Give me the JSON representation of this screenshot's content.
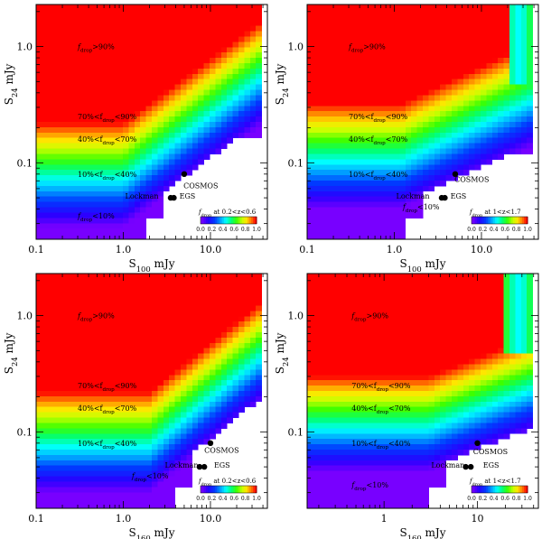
{
  "figure": {
    "description_panels": 4
  },
  "chart_data": [
    {
      "type": "heatmap",
      "xlabel": "S100 mJy",
      "xlabel_main": "S",
      "xlabel_sub": "100",
      "xlabel_unit": "mJy",
      "ylabel_main": "S",
      "ylabel_sub": "24",
      "ylabel_unit": "mJy",
      "xscale": "log",
      "yscale": "log",
      "xlim": [
        0.1,
        45
      ],
      "ylim": [
        0.022,
        2.3
      ],
      "xticks": [
        0.1,
        1.0,
        10.0
      ],
      "xtick_labels": [
        "0.1",
        "1.0",
        "10.0"
      ],
      "yticks": [
        0.1,
        1.0
      ],
      "ytick_labels": [
        "0.1",
        "1.0"
      ],
      "colorbar_title": "f_drop at 0.2<z<0.6",
      "colorbar_title_main": "f",
      "colorbar_title_sub": "drop",
      "colorbar_title_rest": " at 0.2<z<0.6",
      "colorbar_ticks": [
        "0.0",
        "0.2",
        "0.4",
        "0.6",
        "0.8",
        "1.0"
      ],
      "levels": [
        {
          "label_pre": "f",
          "label_sub": "drop",
          "label_post": ">90%",
          "x": 0.3,
          "y": 1.0
        },
        {
          "label_pre": "70%<f",
          "label_sub": "drop",
          "label_post": "<90%",
          "x": 0.3,
          "y": 0.25
        },
        {
          "label_pre": "40%<f",
          "label_sub": "drop",
          "label_post": "<70%",
          "x": 0.3,
          "y": 0.16
        },
        {
          "label_pre": "10%<f",
          "label_sub": "drop",
          "label_post": "<40%",
          "x": 0.3,
          "y": 0.08
        },
        {
          "label_pre": "f",
          "label_sub": "drop",
          "label_post": "<10%",
          "x": 0.3,
          "y": 0.035
        }
      ],
      "fields": [
        {
          "name": "COSMOS",
          "x": 5.0,
          "y": 0.08,
          "label_x": 4.9,
          "label_y": 0.064
        },
        {
          "name": "Lockman",
          "x": 3.5,
          "y": 0.05,
          "label_x": 1.05,
          "label_y": 0.052
        },
        {
          "name": "EGS",
          "x": 3.8,
          "y": 0.05,
          "label_x": 4.4,
          "label_y": 0.052
        }
      ],
      "fdrop_model": {
        "s_full": 0.22,
        "s_none": 0.028,
        "break_x": 1.0,
        "slope": 0.55,
        "hi_noise": 0.0,
        "cutoff_x": 40,
        "cliff_x": 1.8,
        "cliff_top": 0.17
      }
    },
    {
      "type": "heatmap",
      "xlabel": "S100 mJy",
      "xlabel_main": "S",
      "xlabel_sub": "100",
      "xlabel_unit": "mJy",
      "ylabel_main": "S",
      "ylabel_sub": "24",
      "ylabel_unit": "mJy",
      "xscale": "log",
      "yscale": "log",
      "xlim": [
        0.1,
        45
      ],
      "ylim": [
        0.022,
        2.3
      ],
      "xticks": [
        0.1,
        1.0,
        10.0
      ],
      "xtick_labels": [
        "0.1",
        "1.0",
        "10.0"
      ],
      "yticks": [
        0.1,
        1.0
      ],
      "ytick_labels": [
        "0.1",
        "1.0"
      ],
      "colorbar_title": "f_drop at 1<z<1.7",
      "colorbar_title_main": "f",
      "colorbar_title_sub": "drop",
      "colorbar_title_rest": " at 1<z<1.7",
      "colorbar_ticks": [
        "0.0",
        "0.2",
        "0.4",
        "0.6",
        "0.8",
        "1.0"
      ],
      "levels": [
        {
          "label_pre": "f",
          "label_sub": "drop",
          "label_post": ">90%",
          "x": 0.3,
          "y": 1.0
        },
        {
          "label_pre": "70%<f",
          "label_sub": "drop",
          "label_post": "<90%",
          "x": 0.3,
          "y": 0.25
        },
        {
          "label_pre": "40%<f",
          "label_sub": "drop",
          "label_post": "<70%",
          "x": 0.3,
          "y": 0.16
        },
        {
          "label_pre": "10%<f",
          "label_sub": "drop",
          "label_post": "<40%",
          "x": 0.3,
          "y": 0.08
        },
        {
          "label_pre": "f",
          "label_sub": "drop",
          "label_post": "<10%",
          "x": 1.25,
          "y": 0.042
        }
      ],
      "fields": [
        {
          "name": "COSMOS",
          "x": 5.0,
          "y": 0.08,
          "label_x": 4.9,
          "label_y": 0.072
        },
        {
          "name": "Lockman",
          "x": 3.5,
          "y": 0.05,
          "label_x": 1.05,
          "label_y": 0.052
        },
        {
          "name": "EGS",
          "x": 3.8,
          "y": 0.05,
          "label_x": 4.4,
          "label_y": 0.052
        }
      ],
      "fdrop_model": {
        "s_full": 0.32,
        "s_none": 0.04,
        "break_x": 1.2,
        "slope": 0.35,
        "hi_noise": 0.25,
        "cutoff_x": 40,
        "cliff_x": 1.4,
        "cliff_top": 0.12
      }
    },
    {
      "type": "heatmap",
      "xlabel": "S160 mJy",
      "xlabel_main": "S",
      "xlabel_sub": "160",
      "xlabel_unit": "mJy",
      "ylabel_main": "S",
      "ylabel_sub": "24",
      "ylabel_unit": "mJy",
      "xscale": "log",
      "yscale": "log",
      "xlim": [
        0.1,
        45
      ],
      "ylim": [
        0.022,
        2.3
      ],
      "xticks": [
        0.1,
        1.0,
        10.0
      ],
      "xtick_labels": [
        "0.1",
        "1.0",
        "10.0"
      ],
      "yticks": [
        0.1,
        1.0
      ],
      "ytick_labels": [
        "0.1",
        "1.0"
      ],
      "colorbar_title": "f_drop at 0.2<z<0.6",
      "colorbar_title_main": "f",
      "colorbar_title_sub": "drop",
      "colorbar_title_rest": " at 0.2<z<0.6",
      "colorbar_ticks": [
        "0.0",
        "0.2",
        "0.4",
        "0.6",
        "0.8",
        "1.0"
      ],
      "levels": [
        {
          "label_pre": "f",
          "label_sub": "drop",
          "label_post": ">90%",
          "x": 0.3,
          "y": 1.0
        },
        {
          "label_pre": "70%<f",
          "label_sub": "drop",
          "label_post": "<90%",
          "x": 0.3,
          "y": 0.25
        },
        {
          "label_pre": "40%<f",
          "label_sub": "drop",
          "label_post": "<70%",
          "x": 0.3,
          "y": 0.16
        },
        {
          "label_pre": "10%<f",
          "label_sub": "drop",
          "label_post": "<40%",
          "x": 0.3,
          "y": 0.08
        },
        {
          "label_pre": "f",
          "label_sub": "drop",
          "label_post": "<10%",
          "x": 1.25,
          "y": 0.042
        }
      ],
      "fields": [
        {
          "name": "COSMOS",
          "x": 10.0,
          "y": 0.08,
          "label_x": 8.5,
          "label_y": 0.07
        },
        {
          "name": "Lockman",
          "x": 7.5,
          "y": 0.05,
          "label_x": 3.0,
          "label_y": 0.052
        },
        {
          "name": "EGS",
          "x": 8.5,
          "y": 0.05,
          "label_x": 11.0,
          "label_y": 0.052
        }
      ],
      "fdrop_model": {
        "s_full": 0.22,
        "s_none": 0.03,
        "break_x": 2.0,
        "slope": 0.6,
        "hi_noise": 0.0,
        "cutoff_x": 40,
        "cliff_x": 4.0,
        "cliff_top": 0.3
      }
    },
    {
      "type": "heatmap",
      "xlabel": "S160 mJy",
      "xlabel_main": "S",
      "xlabel_sub": "160",
      "xlabel_unit": "mJy",
      "ylabel_main": "S",
      "ylabel_sub": "24",
      "ylabel_unit": "mJy",
      "xscale": "log",
      "yscale": "log",
      "xlim": [
        0.15,
        45
      ],
      "ylim": [
        0.022,
        2.3
      ],
      "xticks": [
        1,
        10
      ],
      "xtick_labels": [
        "1",
        "10"
      ],
      "yticks": [
        0.1,
        1.0
      ],
      "ytick_labels": [
        "0.1",
        "1.0"
      ],
      "colorbar_title": "f_drop at 1<z<1.7",
      "colorbar_title_main": "f",
      "colorbar_title_sub": "drop",
      "colorbar_title_rest": " at 1<z<1.7",
      "colorbar_ticks": [
        "0.0",
        "0.2",
        "0.4",
        "0.6",
        "0.8",
        "1.0"
      ],
      "levels": [
        {
          "label_pre": "f",
          "label_sub": "drop",
          "label_post": ">90%",
          "x": 0.45,
          "y": 1.0
        },
        {
          "label_pre": "70%<f",
          "label_sub": "drop",
          "label_post": "<90%",
          "x": 0.45,
          "y": 0.25
        },
        {
          "label_pre": "40%<f",
          "label_sub": "drop",
          "label_post": "<70%",
          "x": 0.45,
          "y": 0.16
        },
        {
          "label_pre": "10%<f",
          "label_sub": "drop",
          "label_post": "<40%",
          "x": 0.45,
          "y": 0.08
        },
        {
          "label_pre": "f",
          "label_sub": "drop",
          "label_post": "<10%",
          "x": 0.45,
          "y": 0.035
        }
      ],
      "fields": [
        {
          "name": "COSMOS",
          "x": 10.0,
          "y": 0.08,
          "label_x": 9.0,
          "label_y": 0.068
        },
        {
          "name": "Lockman",
          "x": 7.5,
          "y": 0.05,
          "label_x": 3.2,
          "label_y": 0.052
        },
        {
          "name": "EGS",
          "x": 8.5,
          "y": 0.05,
          "label_x": 11.5,
          "label_y": 0.052
        }
      ],
      "fdrop_model": {
        "s_full": 0.3,
        "s_none": 0.045,
        "break_x": 3.0,
        "slope": 0.3,
        "hi_noise": 0.3,
        "cutoff_x": 40,
        "cliff_x": 3.0,
        "cliff_top": 0.14
      }
    }
  ]
}
